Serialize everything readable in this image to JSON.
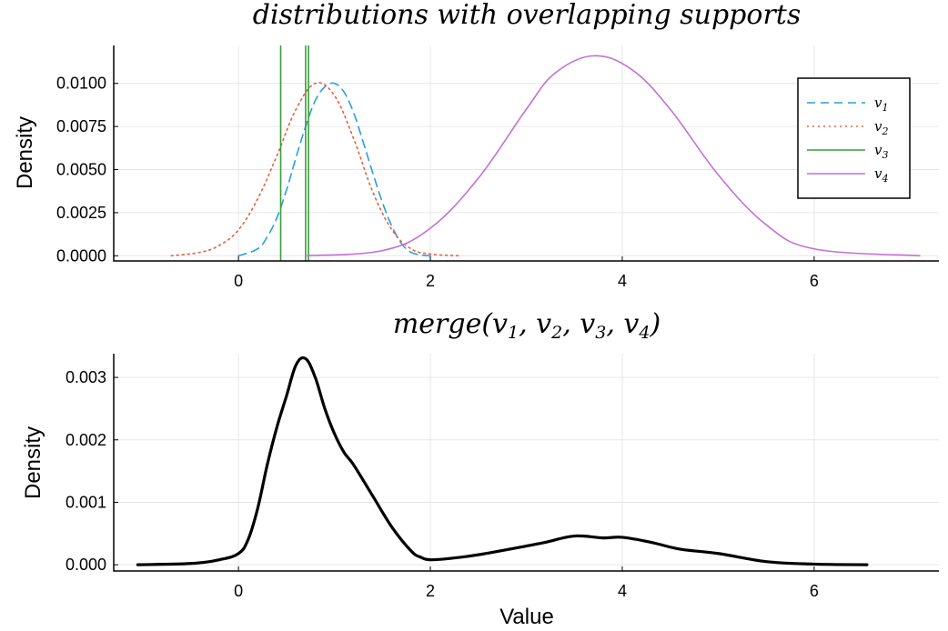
{
  "chart_data": [
    {
      "type": "line",
      "title": "distributions with overlapping supports",
      "xlabel": "",
      "ylabel": "Density",
      "xlim": [
        -1.3,
        7.3
      ],
      "ylim": [
        -0.0003,
        0.0122
      ],
      "xticks": [
        0,
        2,
        4,
        6
      ],
      "xtick_labels": [
        "0",
        "2",
        "4",
        "6"
      ],
      "yticks": [
        0.0,
        0.0025,
        0.005,
        0.0075,
        0.01
      ],
      "ytick_labels": [
        "0.0000",
        "0.0025",
        "0.0050",
        "0.0075",
        "0.0100"
      ],
      "grid": true,
      "legend": "top-right",
      "series": [
        {
          "name": "v1",
          "name_sub": "1",
          "kind": "curve",
          "style": "dashed",
          "color": "#2a9fd9",
          "x": [
            0.0,
            0.2,
            0.3,
            0.4,
            0.5,
            0.6,
            0.7,
            0.8,
            0.9,
            1.0,
            1.1,
            1.2,
            1.3,
            1.4,
            1.5,
            1.6,
            1.7,
            1.8,
            1.9,
            2.0
          ],
          "y": [
            0.0,
            0.0004,
            0.0011,
            0.0022,
            0.0038,
            0.0057,
            0.0075,
            0.009,
            0.0098,
            0.01,
            0.0095,
            0.0083,
            0.0066,
            0.0048,
            0.0031,
            0.0017,
            0.0007,
            0.0002,
            5e-05,
            0.0
          ]
        },
        {
          "name": "v2",
          "name_sub": "2",
          "kind": "curve",
          "style": "dotted",
          "color": "#e3623e",
          "x": [
            -0.7,
            -0.4,
            -0.2,
            0.0,
            0.2,
            0.4,
            0.6,
            0.8,
            1.0,
            1.2,
            1.4,
            1.6,
            1.8,
            2.0,
            2.3
          ],
          "y": [
            0.0,
            0.0002,
            0.0006,
            0.0015,
            0.0033,
            0.0058,
            0.0085,
            0.01,
            0.0093,
            0.0068,
            0.0037,
            0.0015,
            0.0004,
            0.0001,
            0.0
          ],
          "y_sigma": 0.4
        },
        {
          "name": "v3",
          "name_sub": "3",
          "kind": "vlines",
          "style": "solid",
          "color": "#3a9e3a",
          "x": [
            0.44,
            0.7,
            0.73
          ]
        },
        {
          "name": "v4",
          "name_sub": "4",
          "kind": "curve",
          "style": "solid",
          "color": "#c271d2",
          "x": [
            0.7,
            1.5,
            2.0,
            2.5,
            3.0,
            3.3,
            3.7,
            4.1,
            4.5,
            5.0,
            5.5,
            6.0,
            7.1
          ],
          "y": [
            0.0,
            0.0003,
            0.0016,
            0.0045,
            0.0085,
            0.0106,
            0.0116,
            0.0108,
            0.0085,
            0.0047,
            0.0018,
            0.0004,
            0.0
          ],
          "y_sigma": 0.85
        }
      ]
    },
    {
      "type": "line",
      "title": "merge(v1, v2, v3, v4)",
      "xlabel": "Value",
      "ylabel": "Density",
      "xlim": [
        -1.3,
        7.3
      ],
      "ylim": [
        -0.0001,
        0.00338
      ],
      "xticks": [
        0,
        2,
        4,
        6
      ],
      "xtick_labels": [
        "0",
        "2",
        "4",
        "6"
      ],
      "yticks": [
        0.0,
        0.001,
        0.002,
        0.003
      ],
      "ytick_labels": [
        "0.000",
        "0.001",
        "0.002",
        "0.003"
      ],
      "grid": true,
      "series": [
        {
          "kind": "curve",
          "style": "solid",
          "color": "#000000",
          "x": [
            -1.05,
            -0.5,
            -0.2,
            0.0,
            0.1,
            0.2,
            0.3,
            0.4,
            0.5,
            0.6,
            0.7,
            0.8,
            0.9,
            1.0,
            1.1,
            1.2,
            1.4,
            1.6,
            1.8,
            1.9,
            2.0,
            2.2,
            2.5,
            3.0,
            3.2,
            3.5,
            3.8,
            4.0,
            4.3,
            4.6,
            5.0,
            5.5,
            6.0,
            6.55
          ],
          "y": [
            0.0,
            2e-05,
            8e-05,
            0.00018,
            0.0004,
            0.0009,
            0.0016,
            0.0022,
            0.0027,
            0.0032,
            0.0033,
            0.003,
            0.0025,
            0.0021,
            0.0018,
            0.0016,
            0.0011,
            0.0006,
            0.00022,
            0.00012,
            8e-05,
            0.0001,
            0.00016,
            0.0003,
            0.00036,
            0.00046,
            0.00043,
            0.00044,
            0.00036,
            0.00025,
            0.00018,
            5e-05,
            1e-05,
            0.0
          ]
        }
      ]
    }
  ]
}
